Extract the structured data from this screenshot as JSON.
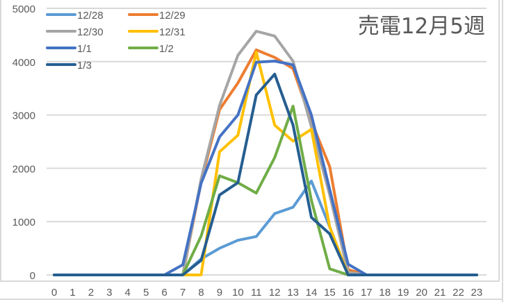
{
  "chart_data": {
    "type": "line",
    "title": "売電12月5週",
    "xlabel": "",
    "ylabel": "",
    "x": [
      0,
      1,
      2,
      3,
      4,
      5,
      6,
      7,
      8,
      9,
      10,
      11,
      12,
      13,
      14,
      15,
      16,
      17,
      18,
      19,
      20,
      21,
      22,
      23
    ],
    "ylim": [
      0,
      5000
    ],
    "yticks": [
      0,
      1000,
      2000,
      3000,
      4000,
      5000
    ],
    "grid": true,
    "legend_position": "top-left (inside, 2 columns)",
    "series": [
      {
        "name": "12/28",
        "color": "#5B9BD5",
        "values": [
          0,
          0,
          0,
          0,
          0,
          0,
          0,
          0,
          300,
          500,
          650,
          720,
          1150,
          1270,
          1760,
          900,
          0,
          0,
          0,
          0,
          0,
          0,
          0,
          0
        ]
      },
      {
        "name": "12/29",
        "color": "#ED7D31",
        "values": [
          0,
          0,
          0,
          0,
          0,
          0,
          0,
          0,
          1750,
          3100,
          3600,
          4220,
          4080,
          3870,
          2880,
          2030,
          100,
          0,
          0,
          0,
          0,
          0,
          0,
          0
        ]
      },
      {
        "name": "12/30",
        "color": "#A5A5A5",
        "values": [
          0,
          0,
          0,
          0,
          0,
          0,
          0,
          0,
          1800,
          3180,
          4120,
          4570,
          4480,
          4010,
          2780,
          1500,
          50,
          0,
          0,
          0,
          0,
          0,
          0,
          0
        ]
      },
      {
        "name": "12/31",
        "color": "#FFC000",
        "values": [
          0,
          0,
          0,
          0,
          0,
          0,
          0,
          0,
          0,
          2310,
          2620,
          4180,
          2810,
          2510,
          2730,
          900,
          0,
          0,
          0,
          0,
          0,
          0,
          0,
          0
        ]
      },
      {
        "name": "1/1",
        "color": "#4472C4",
        "values": [
          0,
          0,
          0,
          0,
          0,
          0,
          0,
          190,
          1720,
          2590,
          3000,
          3990,
          4010,
          3940,
          3000,
          1600,
          200,
          0,
          0,
          0,
          0,
          0,
          0,
          0
        ]
      },
      {
        "name": "1/2",
        "color": "#70AD47",
        "values": [
          0,
          0,
          0,
          0,
          0,
          0,
          0,
          0,
          730,
          1860,
          1730,
          1535,
          2200,
          3165,
          1400,
          115,
          0,
          0,
          0,
          0,
          0,
          0,
          0,
          0
        ]
      },
      {
        "name": "1/3",
        "color": "#255E91",
        "values": [
          0,
          0,
          0,
          0,
          0,
          0,
          0,
          0,
          275,
          1500,
          1730,
          3375,
          3765,
          2810,
          1080,
          770,
          0,
          0,
          0,
          0,
          0,
          0,
          0,
          0
        ]
      }
    ]
  },
  "chart": {
    "title": "売電12月5週",
    "y_tick_labels": [
      "0",
      "1000",
      "2000",
      "3000",
      "4000",
      "5000"
    ],
    "x_tick_labels": [
      "0",
      "1",
      "2",
      "3",
      "4",
      "5",
      "6",
      "7",
      "8",
      "9",
      "10",
      "11",
      "12",
      "13",
      "14",
      "15",
      "16",
      "17",
      "18",
      "19",
      "20",
      "21",
      "22",
      "23"
    ],
    "legend": [
      "12/28",
      "12/29",
      "12/30",
      "12/31",
      "1/1",
      "1/2",
      "1/3"
    ]
  }
}
